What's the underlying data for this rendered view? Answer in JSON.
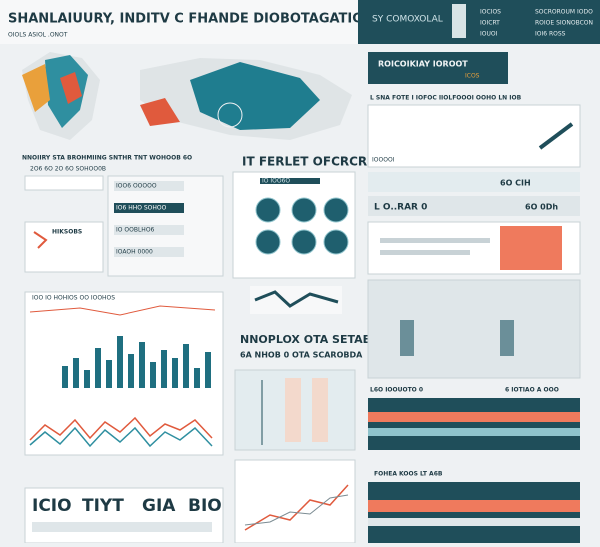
{
  "header": {
    "title": "SHANLAIUURY, INDITV C FHANDE DIOBOTAGATICOH",
    "subtitle": "OIOLS ASIOL .ONOT",
    "byline": "SY COMOXOLAL",
    "menu": [
      "IOCIOS",
      "SOCROROUM IODO",
      "IOICRT",
      "ROIOE SIONOBCON",
      "IOUOI",
      "IOI6 ROSS"
    ]
  },
  "left": {
    "heading": "NNOIIRY STA BROHMIING SNTHR TNT WOHOOB 6O",
    "subheading": "2O6 6O 2O 6O SOHOO0B",
    "callout": "HIKSOBS",
    "rows": [
      "IOO6 OOOOO",
      "IO6 HHO SOHOO",
      "IO OOBLHO6",
      "IOAOH 0000"
    ],
    "chart_label": "IOO IO HOHIOS OO IOOHOS"
  },
  "middle": {
    "heading": "IT FERLET OFCRCRIT",
    "panel_label": "IO IOO6O",
    "section_title": "NNOPLOX OTA SETAEN",
    "section_subtitle": "6A NHOB 0 OTA SCAROBDA"
  },
  "right": {
    "banner": "ROICOIKIAY IOROOT",
    "banner_tag": "ICOS",
    "intro": "L SNA FOTE I IOFOC IIOLFOOOI OOHO LN IOB",
    "row_a": "IOOOOI",
    "row_b": "6O CIH",
    "row_c": "L O..RAR 0",
    "row_d": "6O 0Dh",
    "stripes_a": "L6O IOOUOTO 0",
    "stripes_a_tag": "6 IOTIAO A OOO",
    "stripes_b": "FOHEA KOOS LT A6B"
  },
  "footer": {
    "words": [
      "ICIO",
      "TIYT",
      "GIA",
      "BIO"
    ]
  }
}
